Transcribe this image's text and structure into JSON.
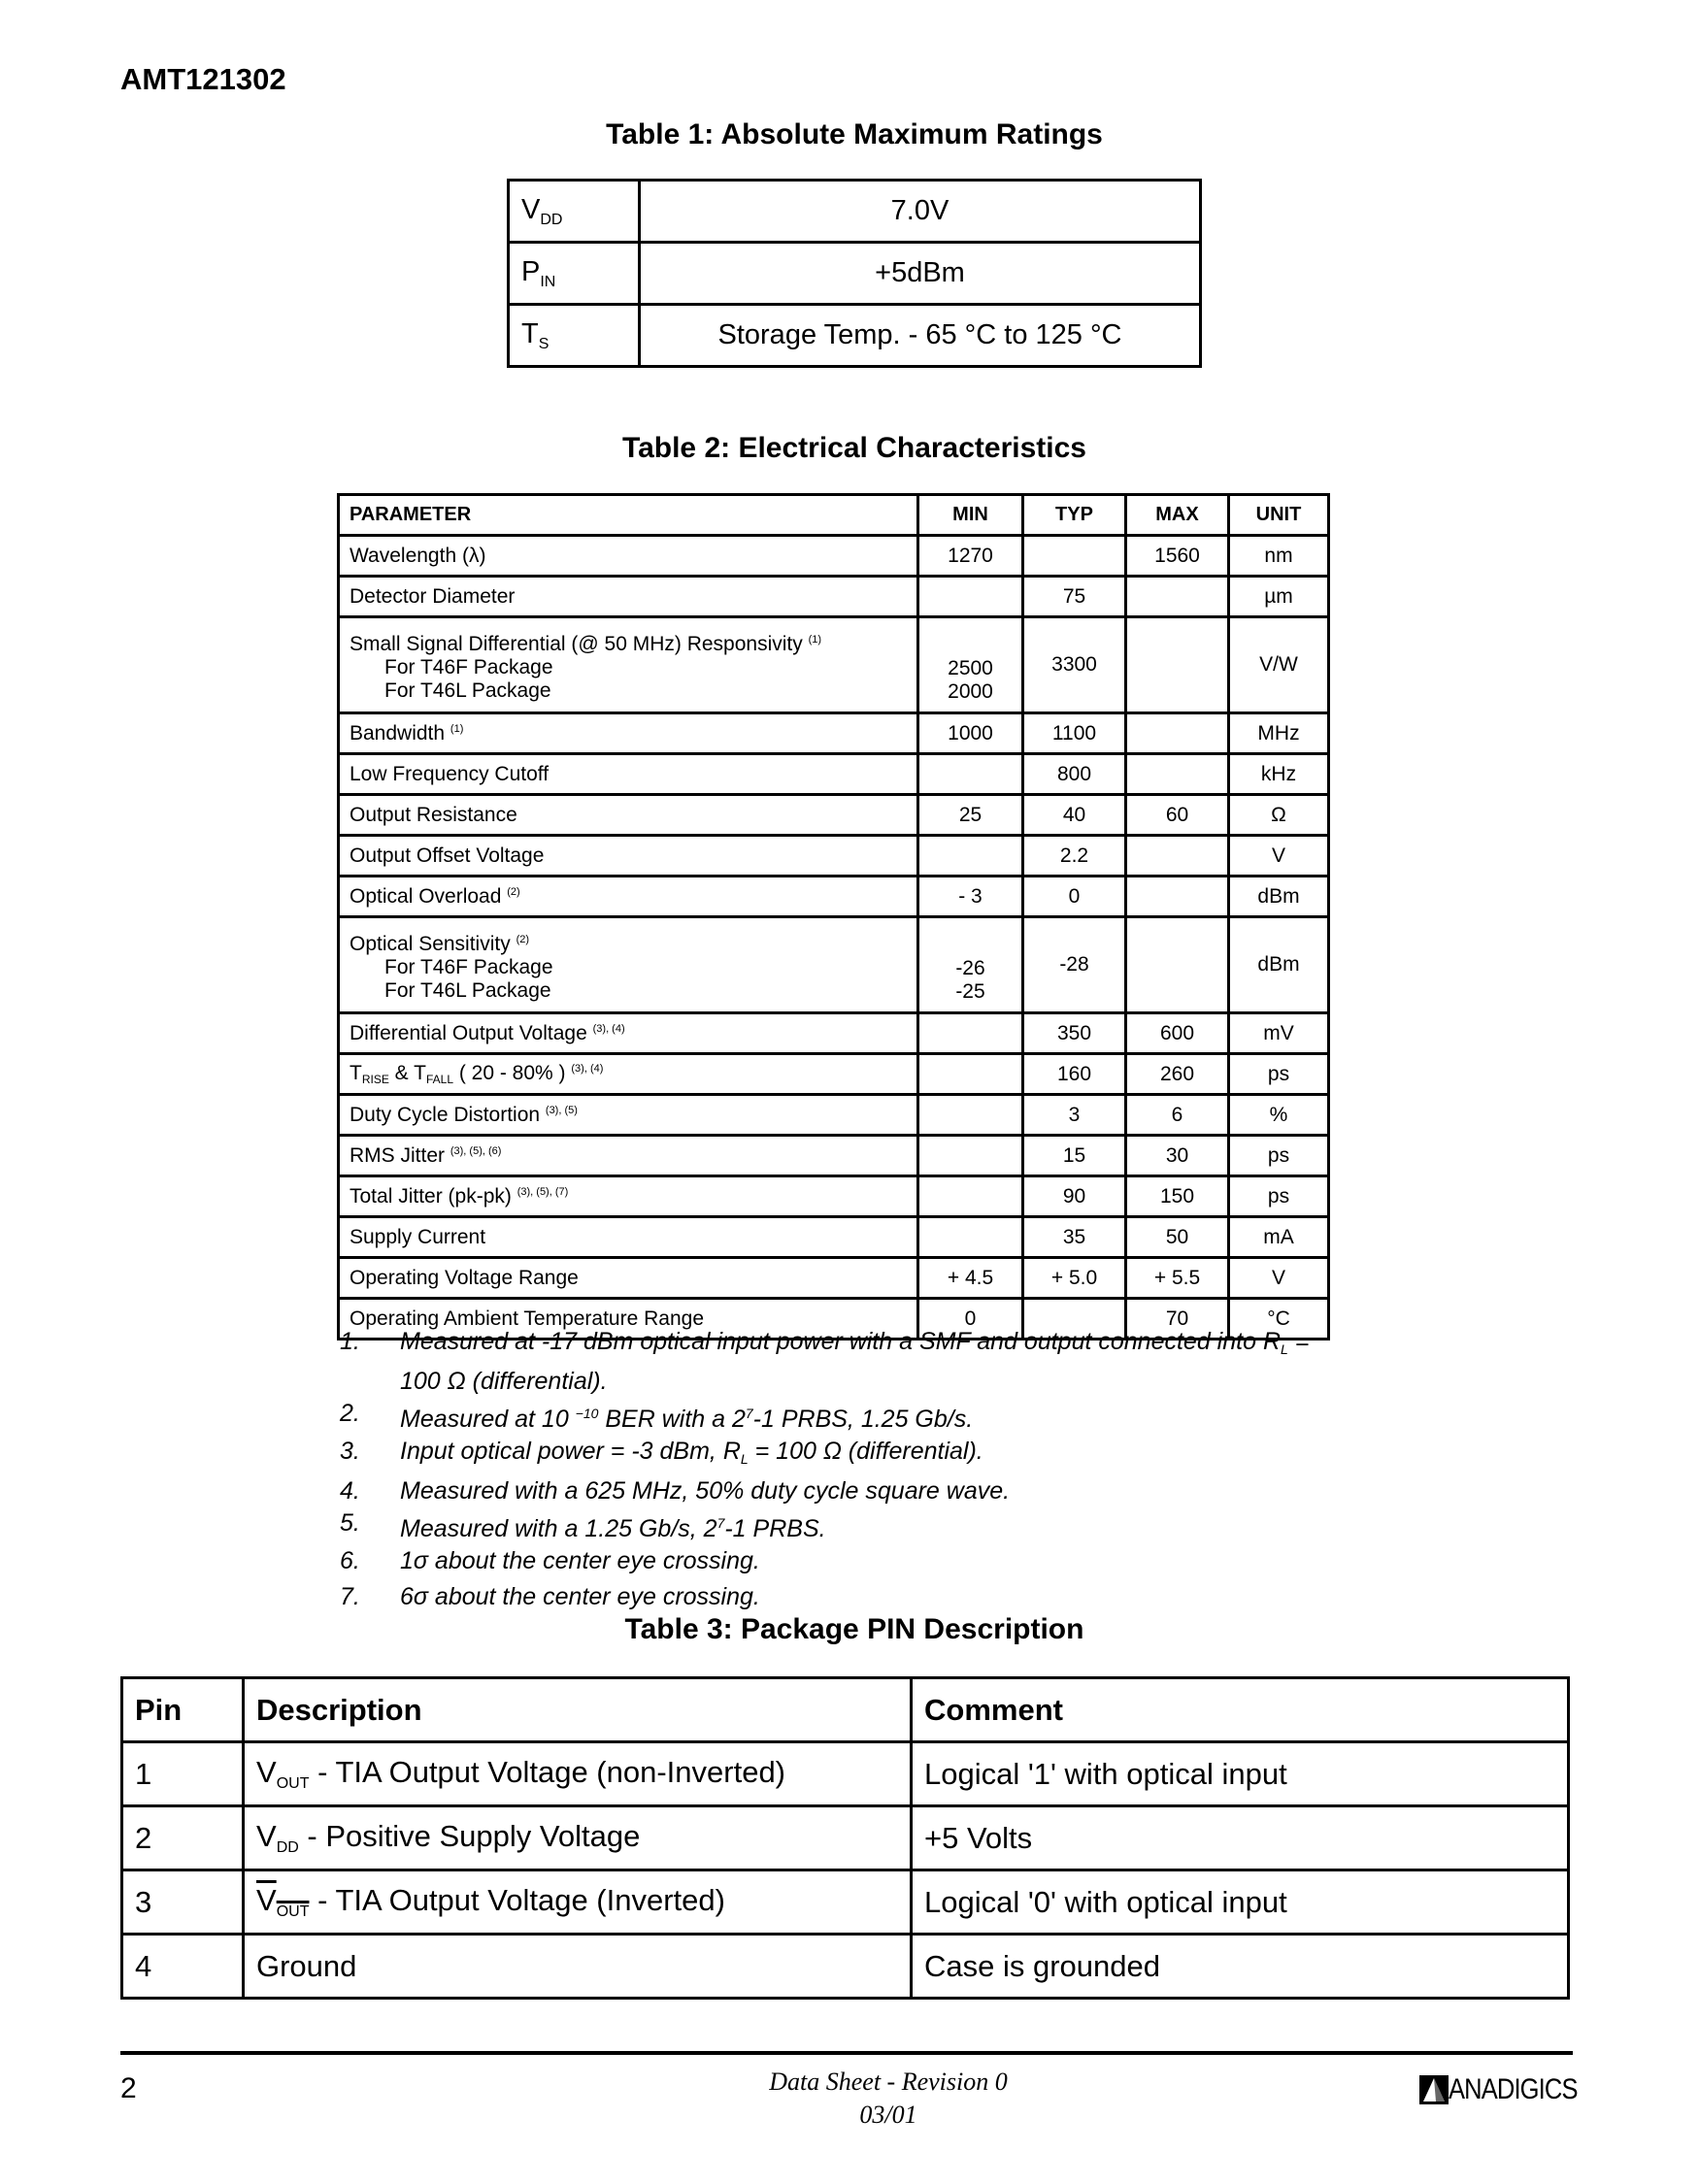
{
  "header": {
    "doc_id": "AMT121302"
  },
  "table1": {
    "title": "Table 1: Absolute Maximum Ratings",
    "rows": [
      {
        "sym": "V",
        "sub": "DD",
        "value": "7.0V"
      },
      {
        "sym": "P",
        "sub": "IN",
        "value": "+5dBm"
      },
      {
        "sym": "T",
        "sub": "S",
        "value": "Storage Temp. - 65 °C to 125 °C"
      }
    ]
  },
  "table2": {
    "title": "Table 2: Electrical Characteristics",
    "headers": [
      "PARAMETER",
      "MIN",
      "TYP",
      "MAX",
      "UNIT"
    ],
    "rows": [
      {
        "param": "Wavelength (λ)",
        "min": "1270",
        "typ": "",
        "max": "1560",
        "unit": "nm"
      },
      {
        "param": "Detector Diameter",
        "min": "",
        "typ": "75",
        "max": "",
        "unit": "µm"
      },
      {
        "param": "Small Signal Differential (@ 50 MHz) Responsivity",
        "sup": "(1)",
        "sub_lines": [
          "For T46F Package",
          "For T46L Package"
        ],
        "min_lines": [
          "2500",
          "2000"
        ],
        "typ": "3300",
        "max": "",
        "unit": "V/W"
      },
      {
        "param": "Bandwidth",
        "sup": "(1)",
        "min": "1000",
        "typ": "1100",
        "max": "",
        "unit": "MHz"
      },
      {
        "param": "Low Frequency Cutoff",
        "min": "",
        "typ": "800",
        "max": "",
        "unit": "kHz"
      },
      {
        "param": "Output Resistance",
        "min": "25",
        "typ": "40",
        "max": "60",
        "unit": "Ω"
      },
      {
        "param": "Output Offset Voltage",
        "min": "",
        "typ": "2.2",
        "max": "",
        "unit": "V"
      },
      {
        "param": "Optical Overload",
        "sup": "(2)",
        "min": "- 3",
        "typ": "0",
        "max": "",
        "unit": "dBm"
      },
      {
        "param": "Optical Sensitivity",
        "sup": "(2)",
        "sub_lines": [
          "For T46F Package",
          "For T46L Package"
        ],
        "min_lines": [
          "-26",
          "-25"
        ],
        "typ": "-28",
        "max": "",
        "unit": "dBm"
      },
      {
        "param": "Differential Output Voltage",
        "sup": "(3), (4)",
        "min": "",
        "typ": "350",
        "max": "600",
        "unit": "mV"
      },
      {
        "param": "T",
        "param_sub": "RISE",
        "param_mid": " & T",
        "param_sub2": "FALL",
        "param_tail": " ( 20 - 80% )",
        "sup": "(3), (4)",
        "min": "",
        "typ": "160",
        "max": "260",
        "unit": "ps"
      },
      {
        "param": "Duty Cycle Distortion",
        "sup": "(3), (5)",
        "min": "",
        "typ": "3",
        "max": "6",
        "unit": "%"
      },
      {
        "param": "RMS Jitter",
        "sup": "(3), (5), (6)",
        "min": "",
        "typ": "15",
        "max": "30",
        "unit": "ps"
      },
      {
        "param": "Total Jitter (pk-pk)",
        "sup": "(3), (5), (7)",
        "min": "",
        "typ": "90",
        "max": "150",
        "unit": "ps"
      },
      {
        "param": "Supply Current",
        "min": "",
        "typ": "35",
        "max": "50",
        "unit": "mA"
      },
      {
        "param": "Operating Voltage Range",
        "min": "+ 4.5",
        "typ": "+ 5.0",
        "max": "+ 5.5",
        "unit": "V"
      },
      {
        "param": "Operating Ambient Temperature Range",
        "min": "0",
        "typ": "",
        "max": "70",
        "unit": "°C"
      }
    ],
    "notes": [
      {
        "n": "1.",
        "a": "Measured at  -17 dBm optical input power with a SMF and output connected into R",
        "sub": "L",
        "b": " = 100 Ω (differential)."
      },
      {
        "n": "2.",
        "a": "Measured at 10 ",
        "sup": "−10",
        "b": " BER with a 2",
        "sup2": "7",
        "c": "-1 PRBS, 1.25 Gb/s."
      },
      {
        "n": "3.",
        "a": "Input optical power = -3 dBm, R",
        "sub": "L",
        "b": " = 100 Ω (differential)."
      },
      {
        "n": "4.",
        "a": "Measured with a 625 MHz, 50% duty cycle square wave."
      },
      {
        "n": "5.",
        "a": "Measured with a 1.25 Gb/s, 2",
        "sup": "7",
        "b": "-1 PRBS."
      },
      {
        "n": "6.",
        "a": "1σ about the center eye crossing."
      },
      {
        "n": "7.",
        "a": "6σ about the center eye crossing."
      }
    ]
  },
  "table3": {
    "title": "Table 3: Package PIN Description",
    "headers": [
      "Pin",
      "Description",
      "Comment"
    ],
    "rows": [
      {
        "pin": "1",
        "sym": "V",
        "sub": "OUT",
        "desc": " - TIA Output Voltage (non-Inverted)",
        "comment": "Logical '1' with optical input",
        "overline": false
      },
      {
        "pin": "2",
        "sym": "V",
        "sub": "DD",
        "desc": " - Positive Supply Voltage",
        "comment": "+5 Volts",
        "overline": false
      },
      {
        "pin": "3",
        "sym": "V",
        "sub": "OUT",
        "desc": " - TIA Output Voltage (Inverted)",
        "comment": "Logical '0' with optical input",
        "overline": true
      },
      {
        "pin": "4",
        "desc": "Ground",
        "comment": "Case is grounded"
      }
    ]
  },
  "footer": {
    "page": "2",
    "line1": "Data Sheet - Revision 0",
    "line2": "03/01",
    "logo": "ANADIGICS"
  }
}
